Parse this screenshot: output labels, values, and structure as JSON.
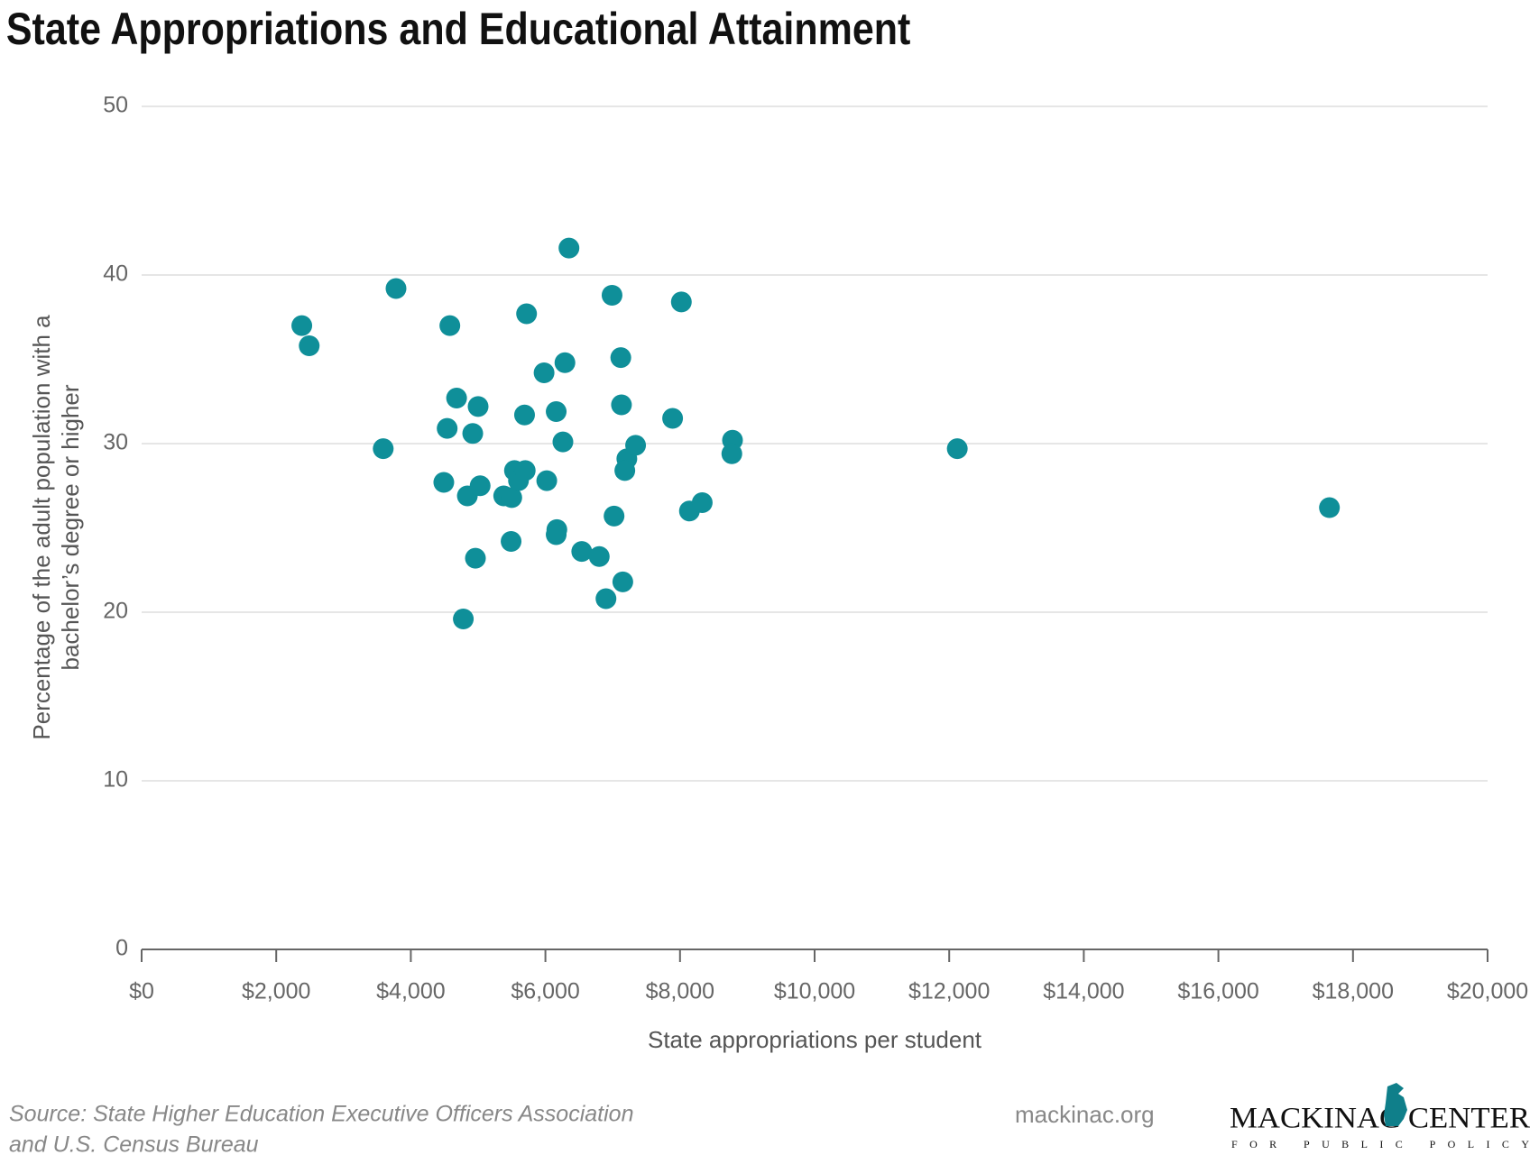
{
  "chart_data": {
    "type": "scatter",
    "title": "State Appropriations and Educational Attainment",
    "x_label": "State appropriations per student",
    "y_label": [
      "Percentage of the adult population with a",
      "bachelor’s degree or higher"
    ],
    "color": "#0f8f99",
    "grid": true,
    "xlim": [
      0,
      20000
    ],
    "ylim": [
      0,
      50
    ],
    "xticks": [
      {
        "value": 0,
        "label": "$0"
      },
      {
        "value": 2000,
        "label": "$2,000"
      },
      {
        "value": 4000,
        "label": "$4,000"
      },
      {
        "value": 6000,
        "label": "$6,000"
      },
      {
        "value": 8000,
        "label": "$8,000"
      },
      {
        "value": 10000,
        "label": "$10,000"
      },
      {
        "value": 12000,
        "label": "$12,000"
      },
      {
        "value": 14000,
        "label": "$14,000"
      },
      {
        "value": 16000,
        "label": "$16,000"
      },
      {
        "value": 18000,
        "label": "$18,000"
      },
      {
        "value": 20000,
        "label": "$20,000"
      }
    ],
    "yticks": [
      0,
      10,
      20,
      30,
      40,
      50
    ],
    "x": [
      2380,
      2490,
      3780,
      3590,
      4580,
      4680,
      4540,
      4920,
      5000,
      4490,
      4840,
      5030,
      4960,
      4780,
      5380,
      5500,
      5490,
      5540,
      5600,
      5700,
      5690,
      5720,
      5980,
      6020,
      6160,
      6260,
      6290,
      6350,
      6170,
      6160,
      6540,
      6800,
      6900,
      6990,
      7020,
      7120,
      7130,
      7210,
      7180,
      7150,
      7340,
      7890,
      8020,
      8140,
      8330,
      8780,
      8770,
      12120,
      17650
    ],
    "values": [
      37.0,
      35.8,
      39.2,
      29.7,
      37.0,
      32.7,
      30.9,
      30.6,
      32.2,
      27.7,
      26.9,
      27.5,
      23.2,
      19.6,
      26.9,
      26.8,
      24.2,
      28.4,
      27.8,
      28.4,
      31.7,
      37.7,
      34.2,
      27.8,
      31.9,
      30.1,
      34.8,
      41.6,
      24.9,
      24.6,
      23.6,
      23.3,
      20.8,
      38.8,
      25.7,
      35.1,
      32.3,
      29.1,
      28.4,
      21.8,
      29.9,
      31.5,
      38.4,
      26.0,
      26.5,
      30.2,
      29.4,
      29.7,
      26.2
    ]
  },
  "footer": {
    "source": [
      "Source: State Higher Education Executive Officers Association",
      "and U.S. Census Bureau"
    ],
    "website": "mackinac.org",
    "logo_name": "MACKINAC CENTER",
    "logo_tagline": "FOR PUBLIC POLICY"
  }
}
